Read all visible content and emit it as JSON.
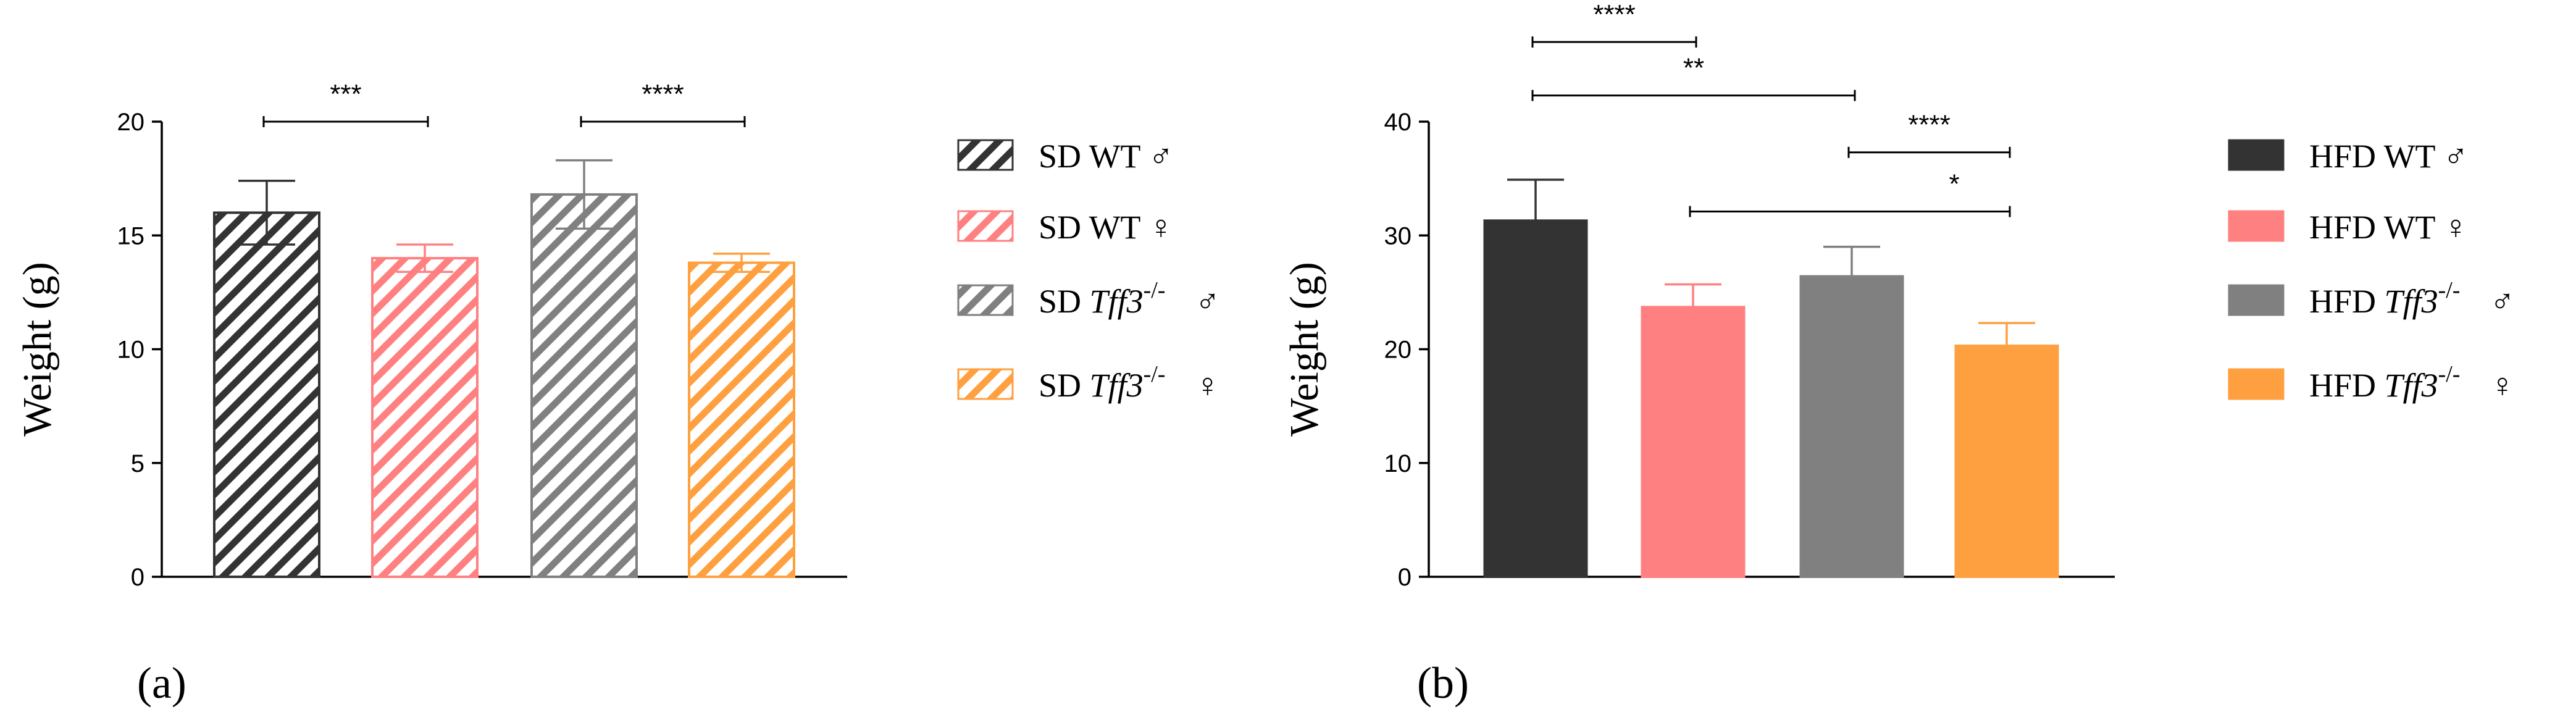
{
  "chart_data": [
    {
      "type": "bar",
      "panel_label": "(a)",
      "ylabel": "Weight (g)",
      "ylim": [
        0,
        20
      ],
      "yticks": [
        0,
        5,
        10,
        15,
        20
      ],
      "pattern": "hatched",
      "series": [
        {
          "name": "SD WT ♂",
          "prefix": "SD",
          "genotype": "WT",
          "sex": "♂",
          "value": 16.0,
          "error": 1.4,
          "color": "#333333"
        },
        {
          "name": "SD WT ♀",
          "prefix": "SD",
          "genotype": "WT",
          "sex": "♀",
          "value": 14.0,
          "error": 0.6,
          "color": "#ff8080"
        },
        {
          "name": "SD Tff3-/- ♂",
          "prefix": "SD",
          "genotype": "Tff3",
          "superscript": "-/-",
          "sex": "♂",
          "value": 16.8,
          "error": 1.5,
          "color": "#808080"
        },
        {
          "name": "SD Tff3-/- ♀",
          "prefix": "SD",
          "genotype": "Tff3",
          "superscript": "-/-",
          "sex": "♀",
          "value": 13.8,
          "error": 0.4,
          "color": "#ffa040"
        }
      ],
      "significance": [
        {
          "from": 0,
          "to": 1,
          "y": 20,
          "label": "***"
        },
        {
          "from": 2,
          "to": 3,
          "y": 20,
          "label": "****"
        }
      ]
    },
    {
      "type": "bar",
      "panel_label": "(b)",
      "ylabel": "Weight (g)",
      "ylim": [
        0,
        40
      ],
      "yticks": [
        0,
        10,
        20,
        30,
        40
      ],
      "pattern": "solid",
      "series": [
        {
          "name": "HFD WT ♂",
          "prefix": "HFD",
          "genotype": "WT",
          "sex": "♂",
          "value": 31.3,
          "error": 3.6,
          "color": "#333333"
        },
        {
          "name": "HFD WT ♀",
          "prefix": "HFD",
          "genotype": "WT",
          "sex": "♀",
          "value": 23.7,
          "error": 2.0,
          "color": "#ff8080"
        },
        {
          "name": "HFD Tff3-/- ♂",
          "prefix": "HFD",
          "genotype": "Tff3",
          "superscript": "-/-",
          "sex": "♂",
          "value": 26.4,
          "error": 2.6,
          "color": "#808080"
        },
        {
          "name": "HFD Tff3-/- ♀",
          "prefix": "HFD",
          "genotype": "Tff3",
          "superscript": "-/-",
          "sex": "♀",
          "value": 20.3,
          "error": 2.0,
          "color": "#ffa040"
        }
      ],
      "significance": [
        {
          "from": 0,
          "to": 1,
          "y": 47,
          "label": "****"
        },
        {
          "from": 0,
          "to": 2,
          "y": 42.3,
          "label": "**"
        },
        {
          "from": 2,
          "to": 3,
          "y": 37.3,
          "label": "****"
        },
        {
          "from": 1,
          "to": 3,
          "y": 32.1,
          "label": "*"
        }
      ]
    }
  ]
}
